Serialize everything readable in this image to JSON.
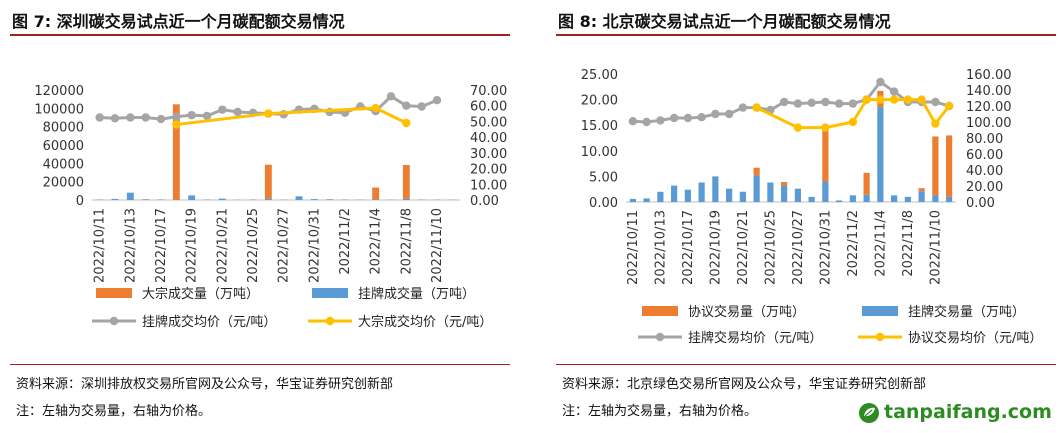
{
  "left": {
    "title": "图 7:  深圳碳交易试点近一个月碳配额交易情况",
    "source": "资料来源：深圳排放权交易所官网及公众号，华宝证券研究创新部",
    "note": "注：左轴为交易量，右轴为价格。"
  },
  "right": {
    "title": "图 8:  北京碳交易试点近一个月碳配额交易情况",
    "source": "资料来源：北京绿色交易所官网及公众号，华宝证券研究创新部",
    "note": "注：左轴为交易量，右轴为价格。"
  },
  "watermark": "tanpaifang.com",
  "icons": {
    "logo": "leaf-logo-icon"
  },
  "chart_data": [
    {
      "type": "bar",
      "title": "",
      "categories": [
        "2022/10/11",
        "2022/10/12",
        "2022/10/13",
        "2022/10/14",
        "2022/10/17",
        "2022/10/18",
        "2022/10/19",
        "2022/10/20",
        "2022/10/21",
        "2022/10/24",
        "2022/10/25",
        "2022/10/26",
        "2022/10/27",
        "2022/10/28",
        "2022/10/31",
        "2022/11/1",
        "2022/11/2",
        "2022/11/3",
        "2022/11/4",
        "2022/11/7",
        "2022/11/8",
        "2022/11/9",
        "2022/11/10",
        "2022/11/11"
      ],
      "tick_labels": [
        "2022/10/11",
        "2022/10/13",
        "2022/10/17",
        "2022/10/19",
        "2022/10/21",
        "2022/10/25",
        "2022/10/27",
        "2022/10/31",
        "2022/11/2",
        "2022/11/4",
        "2022/11/8",
        "2022/11/10"
      ],
      "ylim_left": [
        0,
        120000
      ],
      "yticks_left": [
        "0",
        "20000",
        "40000",
        "60000",
        "80000",
        "100000",
        "120000"
      ],
      "ylim_right": [
        0,
        70
      ],
      "yticks_right": [
        "0.00",
        "10.00",
        "20.00",
        "30.00",
        "40.00",
        "50.00",
        "60.00",
        "70.00"
      ],
      "grid": false,
      "legend_position": "bottom",
      "series": [
        {
          "name": "大宗成交量（万吨）",
          "kind": "bar",
          "axis": "left",
          "color": "#ed7d31",
          "values": [
            0,
            0,
            0,
            0,
            0,
            104000,
            0,
            0,
            0,
            0,
            0,
            37000,
            0,
            0,
            0,
            0,
            0,
            0,
            13000,
            0,
            37000,
            0,
            0,
            0
          ]
        },
        {
          "name": "挂牌成交量（万吨）",
          "kind": "bar",
          "axis": "left",
          "color": "#5b9bd5",
          "values": [
            500,
            1200,
            8000,
            800,
            600,
            400,
            5000,
            500,
            1500,
            300,
            500,
            1500,
            400,
            4000,
            1000,
            800,
            500,
            400,
            600,
            300,
            1200,
            500,
            400,
            300
          ]
        },
        {
          "name": "挂牌成交均价（元/吨）",
          "kind": "line",
          "axis": "right",
          "color": "#a5a5a5",
          "values": [
            52.5,
            52.0,
            52.5,
            52.5,
            51.5,
            53.0,
            54.0,
            53.5,
            57.5,
            56.0,
            55.5,
            55.0,
            54.5,
            57.5,
            58.0,
            56.0,
            55.5,
            59.5,
            56.5,
            66.0,
            60.0,
            59.5,
            63.5,
            null
          ]
        },
        {
          "name": "大宗成交均价（元/吨）",
          "kind": "line",
          "axis": "right",
          "color": "#ffc000",
          "values": [
            null,
            null,
            null,
            null,
            null,
            48.0,
            null,
            null,
            null,
            null,
            null,
            55.0,
            null,
            null,
            null,
            null,
            null,
            null,
            58.5,
            null,
            49.0,
            null,
            null,
            null
          ]
        }
      ]
    },
    {
      "type": "bar",
      "title": "",
      "categories": [
        "2022/10/11",
        "2022/10/12",
        "2022/10/13",
        "2022/10/14",
        "2022/10/17",
        "2022/10/18",
        "2022/10/19",
        "2022/10/20",
        "2022/10/21",
        "2022/10/24",
        "2022/10/25",
        "2022/10/26",
        "2022/10/27",
        "2022/10/28",
        "2022/10/31",
        "2022/11/1",
        "2022/11/2",
        "2022/11/3",
        "2022/11/4",
        "2022/11/7",
        "2022/11/8",
        "2022/11/9",
        "2022/11/10",
        "2022/11/11"
      ],
      "tick_labels": [
        "2022/10/11",
        "2022/10/13",
        "2022/10/17",
        "2022/10/19",
        "2022/10/21",
        "2022/10/25",
        "2022/10/27",
        "2022/10/31",
        "2022/11/2",
        "2022/11/4",
        "2022/11/8",
        "2022/11/10"
      ],
      "ylim_left": [
        0,
        25
      ],
      "yticks_left": [
        "0.00",
        "5.00",
        "10.00",
        "15.00",
        "20.00",
        "25.00"
      ],
      "ylim_right": [
        0,
        160
      ],
      "yticks_right": [
        "0.00",
        "20.00",
        "40.00",
        "60.00",
        "80.00",
        "100.00",
        "120.00",
        "140.00",
        "160.00"
      ],
      "grid": false,
      "legend_position": "bottom",
      "series": [
        {
          "name": "协议交易量（万吨）",
          "kind": "bar",
          "axis": "left",
          "color": "#ed7d31",
          "values": [
            0,
            0,
            0,
            0,
            0,
            0,
            0,
            0,
            0,
            1.5,
            0,
            0.7,
            0,
            0,
            10.8,
            0,
            0,
            4.3,
            3.2,
            0,
            0,
            0.6,
            11.5,
            12.0
          ]
        },
        {
          "name": "挂牌交易量（万吨）",
          "kind": "bar",
          "axis": "left",
          "color": "#5b9bd5",
          "values": [
            0.6,
            0.7,
            2.0,
            3.2,
            2.4,
            3.8,
            5.0,
            2.6,
            2.0,
            5.2,
            3.8,
            3.2,
            2.6,
            1.0,
            4.0,
            0.3,
            1.3,
            1.4,
            18.5,
            1.3,
            1.0,
            2.1,
            1.3,
            1.0
          ]
        },
        {
          "name": "挂牌交易均价（元/吨）",
          "kind": "line",
          "axis": "right",
          "color": "#a5a5a5",
          "values": [
            101,
            100,
            102,
            105,
            105,
            106,
            110,
            110,
            118,
            118,
            115,
            125,
            123,
            124,
            125,
            123,
            123,
            128,
            150,
            138,
            125,
            125,
            125,
            120
          ]
        },
        {
          "name": "协议交易均价（元/吨）",
          "kind": "line",
          "axis": "right",
          "color": "#ffc000",
          "values": [
            null,
            null,
            null,
            null,
            null,
            null,
            null,
            null,
            null,
            118,
            null,
            null,
            93,
            null,
            93,
            null,
            100,
            128,
            128,
            128,
            128,
            128,
            98,
            120
          ]
        }
      ]
    }
  ]
}
